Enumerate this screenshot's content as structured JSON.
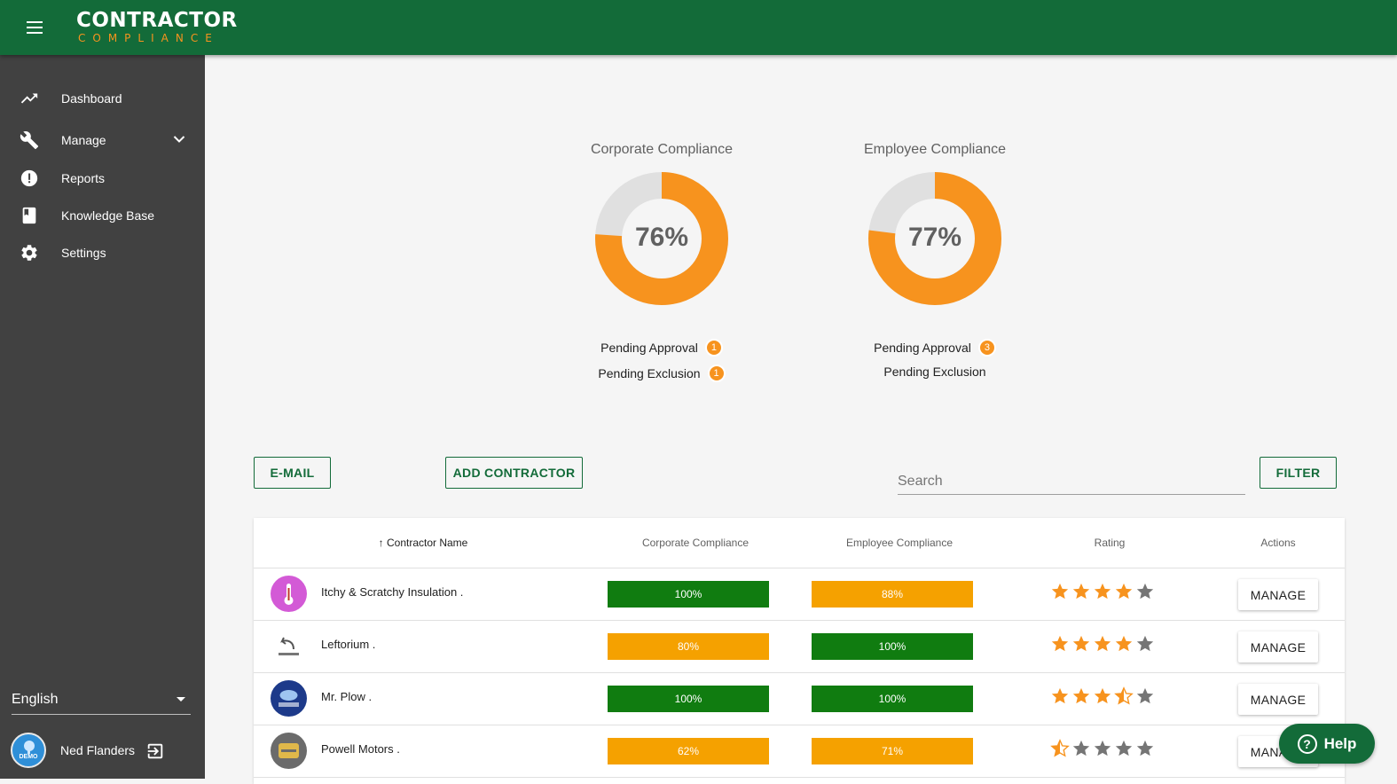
{
  "app": {
    "logo_top": "CONTRACTOR",
    "logo_bottom": "COMPLIANCE",
    "colors": {
      "brand_green": "#136b39",
      "accent_orange": "#f7931e",
      "bar_green": "#107c10",
      "bar_orange": "#f5a100"
    }
  },
  "sidebar": {
    "items": [
      {
        "label": "Dashboard",
        "icon": "trending-up-icon"
      },
      {
        "label": "Manage",
        "icon": "wrench-icon",
        "has_submenu": true
      },
      {
        "label": "Reports",
        "icon": "alert-circle-icon"
      },
      {
        "label": "Knowledge Base",
        "icon": "book-icon"
      },
      {
        "label": "Settings",
        "icon": "gear-icon"
      }
    ],
    "language": "English",
    "user_name": "Ned Flanders",
    "avatar_text": "DEMO"
  },
  "gauges": [
    {
      "title": "Corporate Compliance",
      "percent": 76,
      "percent_label": "76%",
      "pending_approval_label": "Pending Approval",
      "pending_approval": "1",
      "pending_exclusion_label": "Pending Exclusion",
      "pending_exclusion": "1"
    },
    {
      "title": "Employee Compliance",
      "percent": 77,
      "percent_label": "77%",
      "pending_approval_label": "Pending Approval",
      "pending_approval": "3",
      "pending_exclusion_label": "Pending Exclusion",
      "pending_exclusion": ""
    }
  ],
  "toolbar": {
    "email_label": "E-MAIL",
    "add_contractor_label": "ADD CONTRACTOR",
    "search_placeholder": "Search",
    "filter_label": "FILTER"
  },
  "table": {
    "headers": {
      "name": "Contractor Name",
      "corporate": "Corporate Compliance",
      "employee": "Employee Compliance",
      "rating": "Rating",
      "actions": "Actions"
    },
    "sort_indicator": "↑",
    "manage_label": "MANAGE",
    "rows": [
      {
        "name": "Itchy & Scratchy Insulation .",
        "corporate": "100%",
        "corporate_status": "green",
        "employee": "88%",
        "employee_status": "orange",
        "rating": 4
      },
      {
        "name": "Leftorium .",
        "corporate": "80%",
        "corporate_status": "orange",
        "employee": "100%",
        "employee_status": "green",
        "rating": 4
      },
      {
        "name": "Mr. Plow .",
        "corporate": "100%",
        "corporate_status": "green",
        "employee": "100%",
        "employee_status": "green",
        "rating": 3.5
      },
      {
        "name": "Powell Motors .",
        "corporate": "62%",
        "corporate_status": "orange",
        "employee": "71%",
        "employee_status": "orange",
        "rating": 0.5
      }
    ]
  },
  "help": {
    "label": "Help"
  }
}
